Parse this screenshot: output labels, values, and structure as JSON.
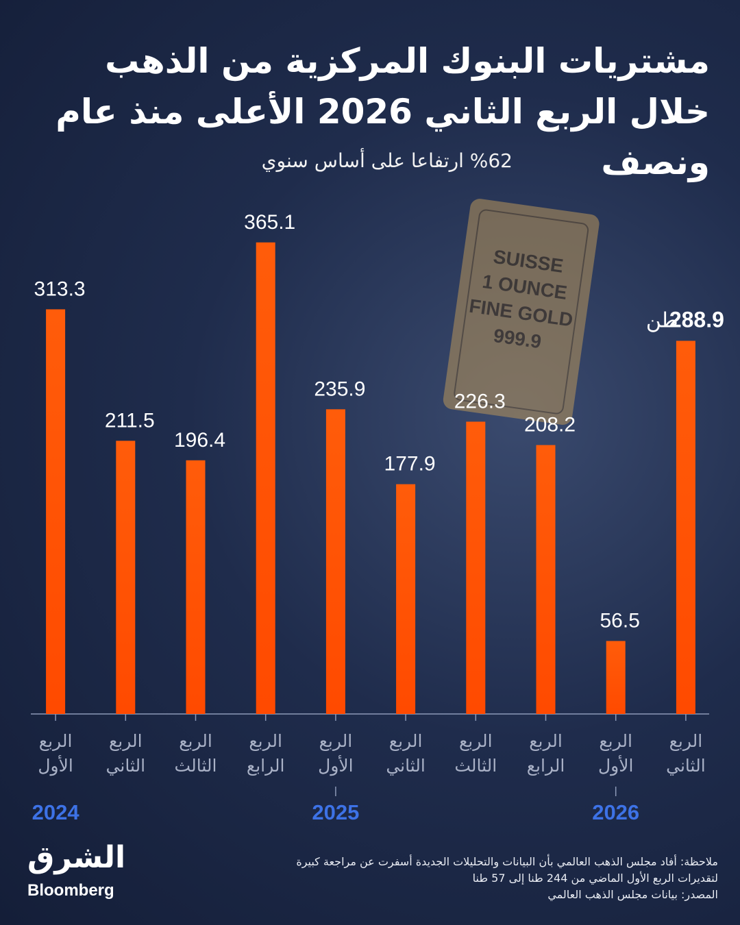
{
  "chart_data": {
    "type": "bar",
    "title": "مشتريات البنوك المركزية من الذهب خلال الربع الثاني 2026 الأعلى منذ عام ونصف",
    "subtitle": "%62 ارتفاعا على أساس سنوي",
    "groups": [
      {
        "label": "2024",
        "categories": [
          "الربع الأول",
          "الربع الثاني",
          "الربع الثالث",
          "الربع الرابع"
        ],
        "values": [
          313.3,
          211.5,
          196.4,
          365.1
        ]
      },
      {
        "label": "2025",
        "categories": [
          "الربع الأول",
          "الربع الثاني",
          "الربع الثالث",
          "الربع الرابع"
        ],
        "values": [
          235.9,
          177.9,
          226.3,
          208.2
        ]
      },
      {
        "label": "2026",
        "categories": [
          "الربع الأول",
          "الربع الثاني"
        ],
        "values": [
          56.5,
          288.9
        ]
      }
    ],
    "unit": "طن",
    "color": "#ff5c0a",
    "ylim": [
      0,
      400
    ],
    "image_text": [
      "SUISSE",
      "1 OUNCE",
      "FINE GOLD",
      "999.9"
    ],
    "notes": [
      "ملاحظة: أفاد مجلس الذهب العالمي بأن البيانات والتحليلات الجديدة أسفرت عن مراجعة كبيرة",
      "لتقديرات الربع الأول الماضي من 244 طنا إلى 57 طنا",
      "المصدر: بيانات مجلس الذهب العالمي"
    ],
    "logo": [
      "الشرق",
      "Bloomberg"
    ]
  }
}
